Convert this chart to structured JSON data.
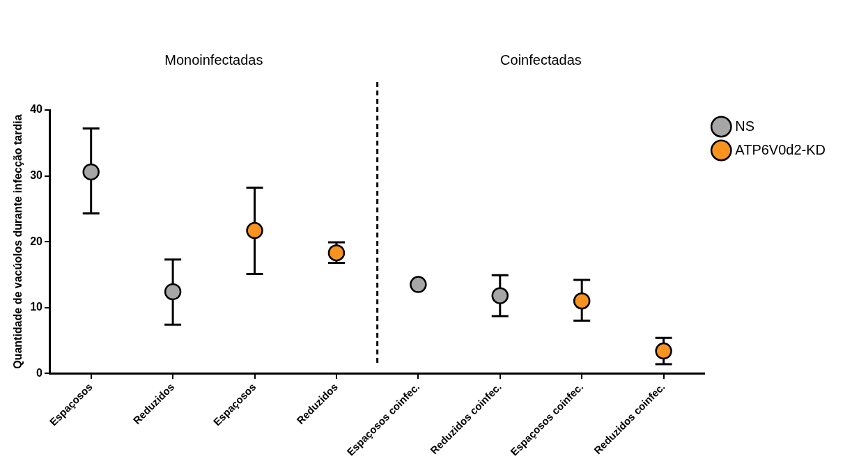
{
  "chart_data": {
    "type": "scatter",
    "ylabel": "Quantidade de vacúolos durante infecção tardia",
    "categories": [
      "Espaçosos",
      "Reduzidos",
      "Espaçosos",
      "Reduzidos",
      "Espaçosos coinfec.",
      "Reduzidos coinfec.",
      "Espaçosos coinfec.",
      "Reduzidos coinfec."
    ],
    "series": [
      {
        "name": "NS",
        "color": "#a6a6a6",
        "values": [
          30.6,
          12.4,
          null,
          null,
          13.5,
          11.8,
          null,
          null
        ],
        "errors": [
          [
            24.3,
            37.2
          ],
          [
            7.4,
            17.3
          ],
          null,
          null,
          null,
          [
            8.7,
            14.9
          ],
          null,
          null
        ]
      },
      {
        "name": "ATP6V0d2-KD",
        "color": "#f7931e",
        "values": [
          null,
          null,
          21.7,
          18.3,
          null,
          null,
          11.0,
          3.4
        ],
        "errors": [
          null,
          null,
          [
            15.1,
            28.2
          ],
          [
            16.8,
            19.9
          ],
          null,
          null,
          [
            8.0,
            14.2
          ],
          [
            1.4,
            5.4
          ]
        ]
      }
    ],
    "ylim": [
      0,
      40
    ],
    "yticks": [
      0,
      10,
      20,
      30,
      40
    ],
    "grid": false,
    "legend": "top right",
    "marker": "circle",
    "annotations": [
      "Monoinfectadas",
      "Coinfectadas"
    ]
  }
}
